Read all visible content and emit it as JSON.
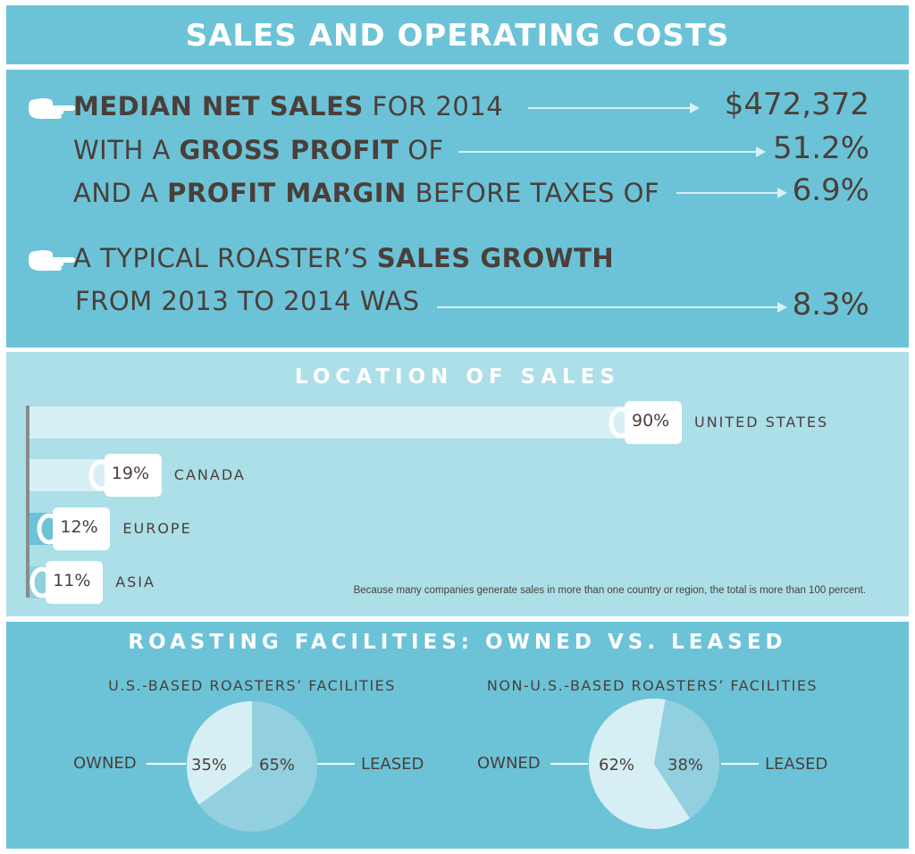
{
  "header": {
    "title": "SALES AND OPERATING COSTS"
  },
  "stats": {
    "lines": [
      {
        "pre": "",
        "bold": "MEDIAN NET SALES",
        "post": " FOR 2014",
        "value": "$472,372"
      },
      {
        "pre": "WITH A ",
        "bold": "GROSS PROFIT",
        "post": " OF",
        "value": "51.2%"
      },
      {
        "pre": "AND A ",
        "bold": "PROFIT MARGIN",
        "post": " BEFORE TAXES OF",
        "value": "6.9%"
      },
      {
        "pre": "A TYPICAL ROASTER’S ",
        "bold": "SALES GROWTH",
        "post": "",
        "value": ""
      },
      {
        "pre": "FROM 2013 TO 2014 WAS",
        "bold": "",
        "post": "",
        "value": "8.3%"
      }
    ],
    "icon": "pointing-hand-icon"
  },
  "chart_data": [
    {
      "type": "bar",
      "title": "LOCATION OF SALES",
      "categories": [
        "UNITED STATES",
        "CANADA",
        "EUROPE",
        "ASIA"
      ],
      "values": [
        90,
        19,
        12,
        11
      ],
      "value_labels": [
        "90%",
        "19%",
        "12%",
        "11%"
      ],
      "orientation": "horizontal",
      "xlim": [
        0,
        100
      ],
      "note": "Because many companies generate sales in more than one country or region, the total is more than 100 percent.",
      "colors": {
        "track": "#d7f0f5",
        "fill_low": "#6cc3d7",
        "fill_mid": "#8ed0de",
        "axis": "#8a8a8a"
      },
      "icon": "coffee-mug-icon"
    },
    {
      "type": "pie",
      "title": "ROASTING FACILITIES: OWNED VS. LEASED",
      "subtitle": "U.S.-BASED ROASTERS’ FACILITIES",
      "categories": [
        "OWNED",
        "LEASED"
      ],
      "values": [
        35,
        65
      ],
      "value_labels": [
        "35%",
        "65%"
      ],
      "colors": [
        "#d6eff5",
        "#93d0df"
      ]
    },
    {
      "type": "pie",
      "subtitle": "NON-U.S.-BASED ROASTERS’ FACILITIES",
      "categories": [
        "OWNED",
        "LEASED"
      ],
      "values": [
        62,
        38
      ],
      "value_labels": [
        "62%",
        "38%"
      ],
      "colors": [
        "#d6eff5",
        "#93d0df"
      ]
    }
  ]
}
